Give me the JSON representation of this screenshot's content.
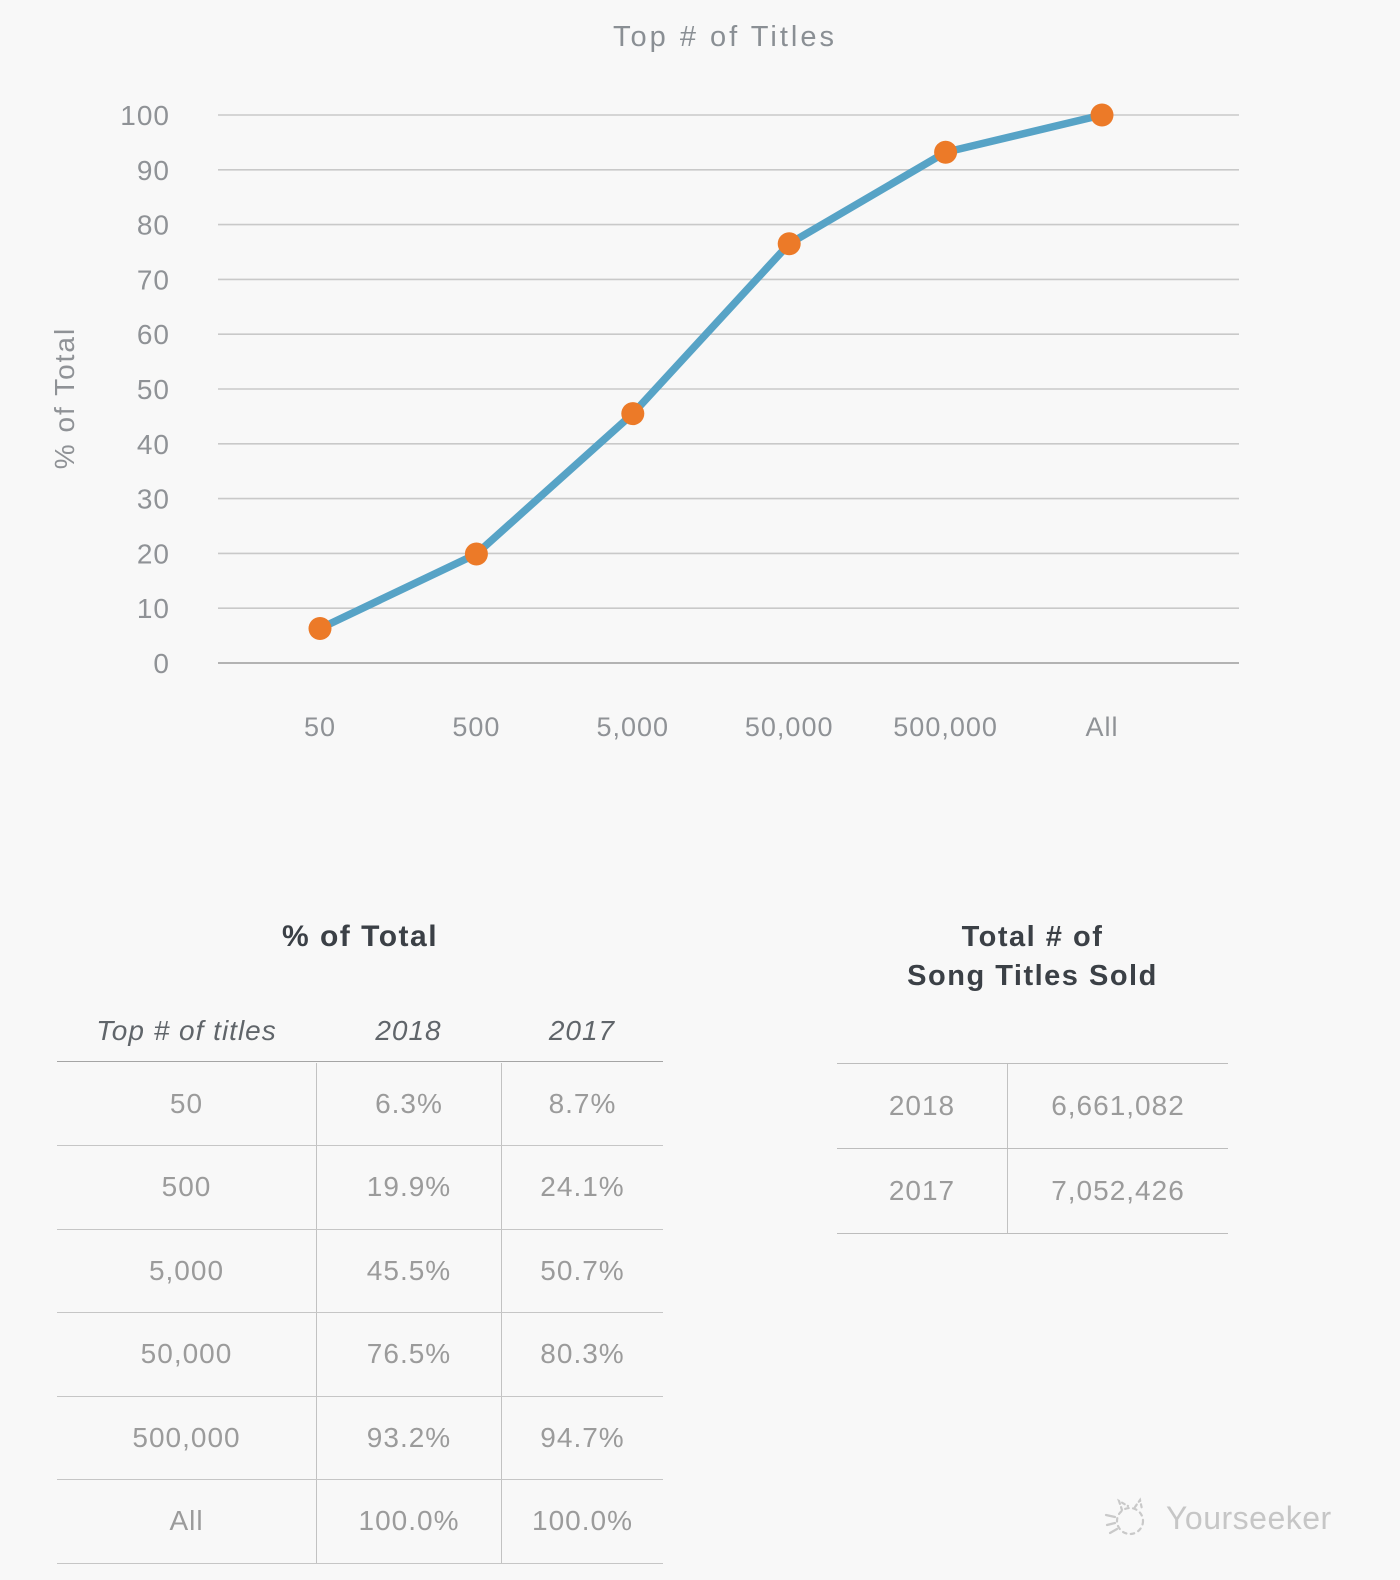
{
  "colors": {
    "background": "#f8f8f8",
    "line": "#57a3c6",
    "marker": "#ec7a28",
    "grid": "#c9c9c9",
    "axis_text": "#8f9296",
    "table_title_text": "#3b4046",
    "table_value_text": "#9b9b9b"
  },
  "chart_data": {
    "type": "line",
    "title": "Top # of Titles",
    "xlabel": "",
    "ylabel": "% of Total",
    "categories": [
      "50",
      "500",
      "5,000",
      "50,000",
      "500,000",
      "All"
    ],
    "series": [
      {
        "name": "2018",
        "values": [
          6.3,
          19.9,
          45.5,
          76.5,
          93.2,
          100.0
        ]
      }
    ],
    "ylim": [
      0,
      100
    ],
    "ytick_step": 10,
    "grid": "horizontal",
    "legend": "none",
    "line_color": "#57a3c6",
    "marker_color": "#ec7a28"
  },
  "pct_table": {
    "title": "% of Total",
    "columns": [
      "Top # of titles",
      "2018",
      "2017"
    ],
    "rows": [
      {
        "label": "50",
        "y2018": "6.3%",
        "y2017": "8.7%"
      },
      {
        "label": "500",
        "y2018": "19.9%",
        "y2017": "24.1%"
      },
      {
        "label": "5,000",
        "y2018": "45.5%",
        "y2017": "50.7%"
      },
      {
        "label": "50,000",
        "y2018": "76.5%",
        "y2017": "80.3%"
      },
      {
        "label": "500,000",
        "y2018": "93.2%",
        "y2017": "94.7%"
      },
      {
        "label": "All",
        "y2018": "100.0%",
        "y2017": "100.0%"
      }
    ]
  },
  "totals_table": {
    "title_line1": "Total # of",
    "title_line2": "Song Titles Sold",
    "rows": [
      {
        "year": "2018",
        "value": "6,661,082"
      },
      {
        "year": "2017",
        "value": "7,052,426"
      }
    ]
  },
  "watermark": {
    "text": "Yourseeker"
  }
}
